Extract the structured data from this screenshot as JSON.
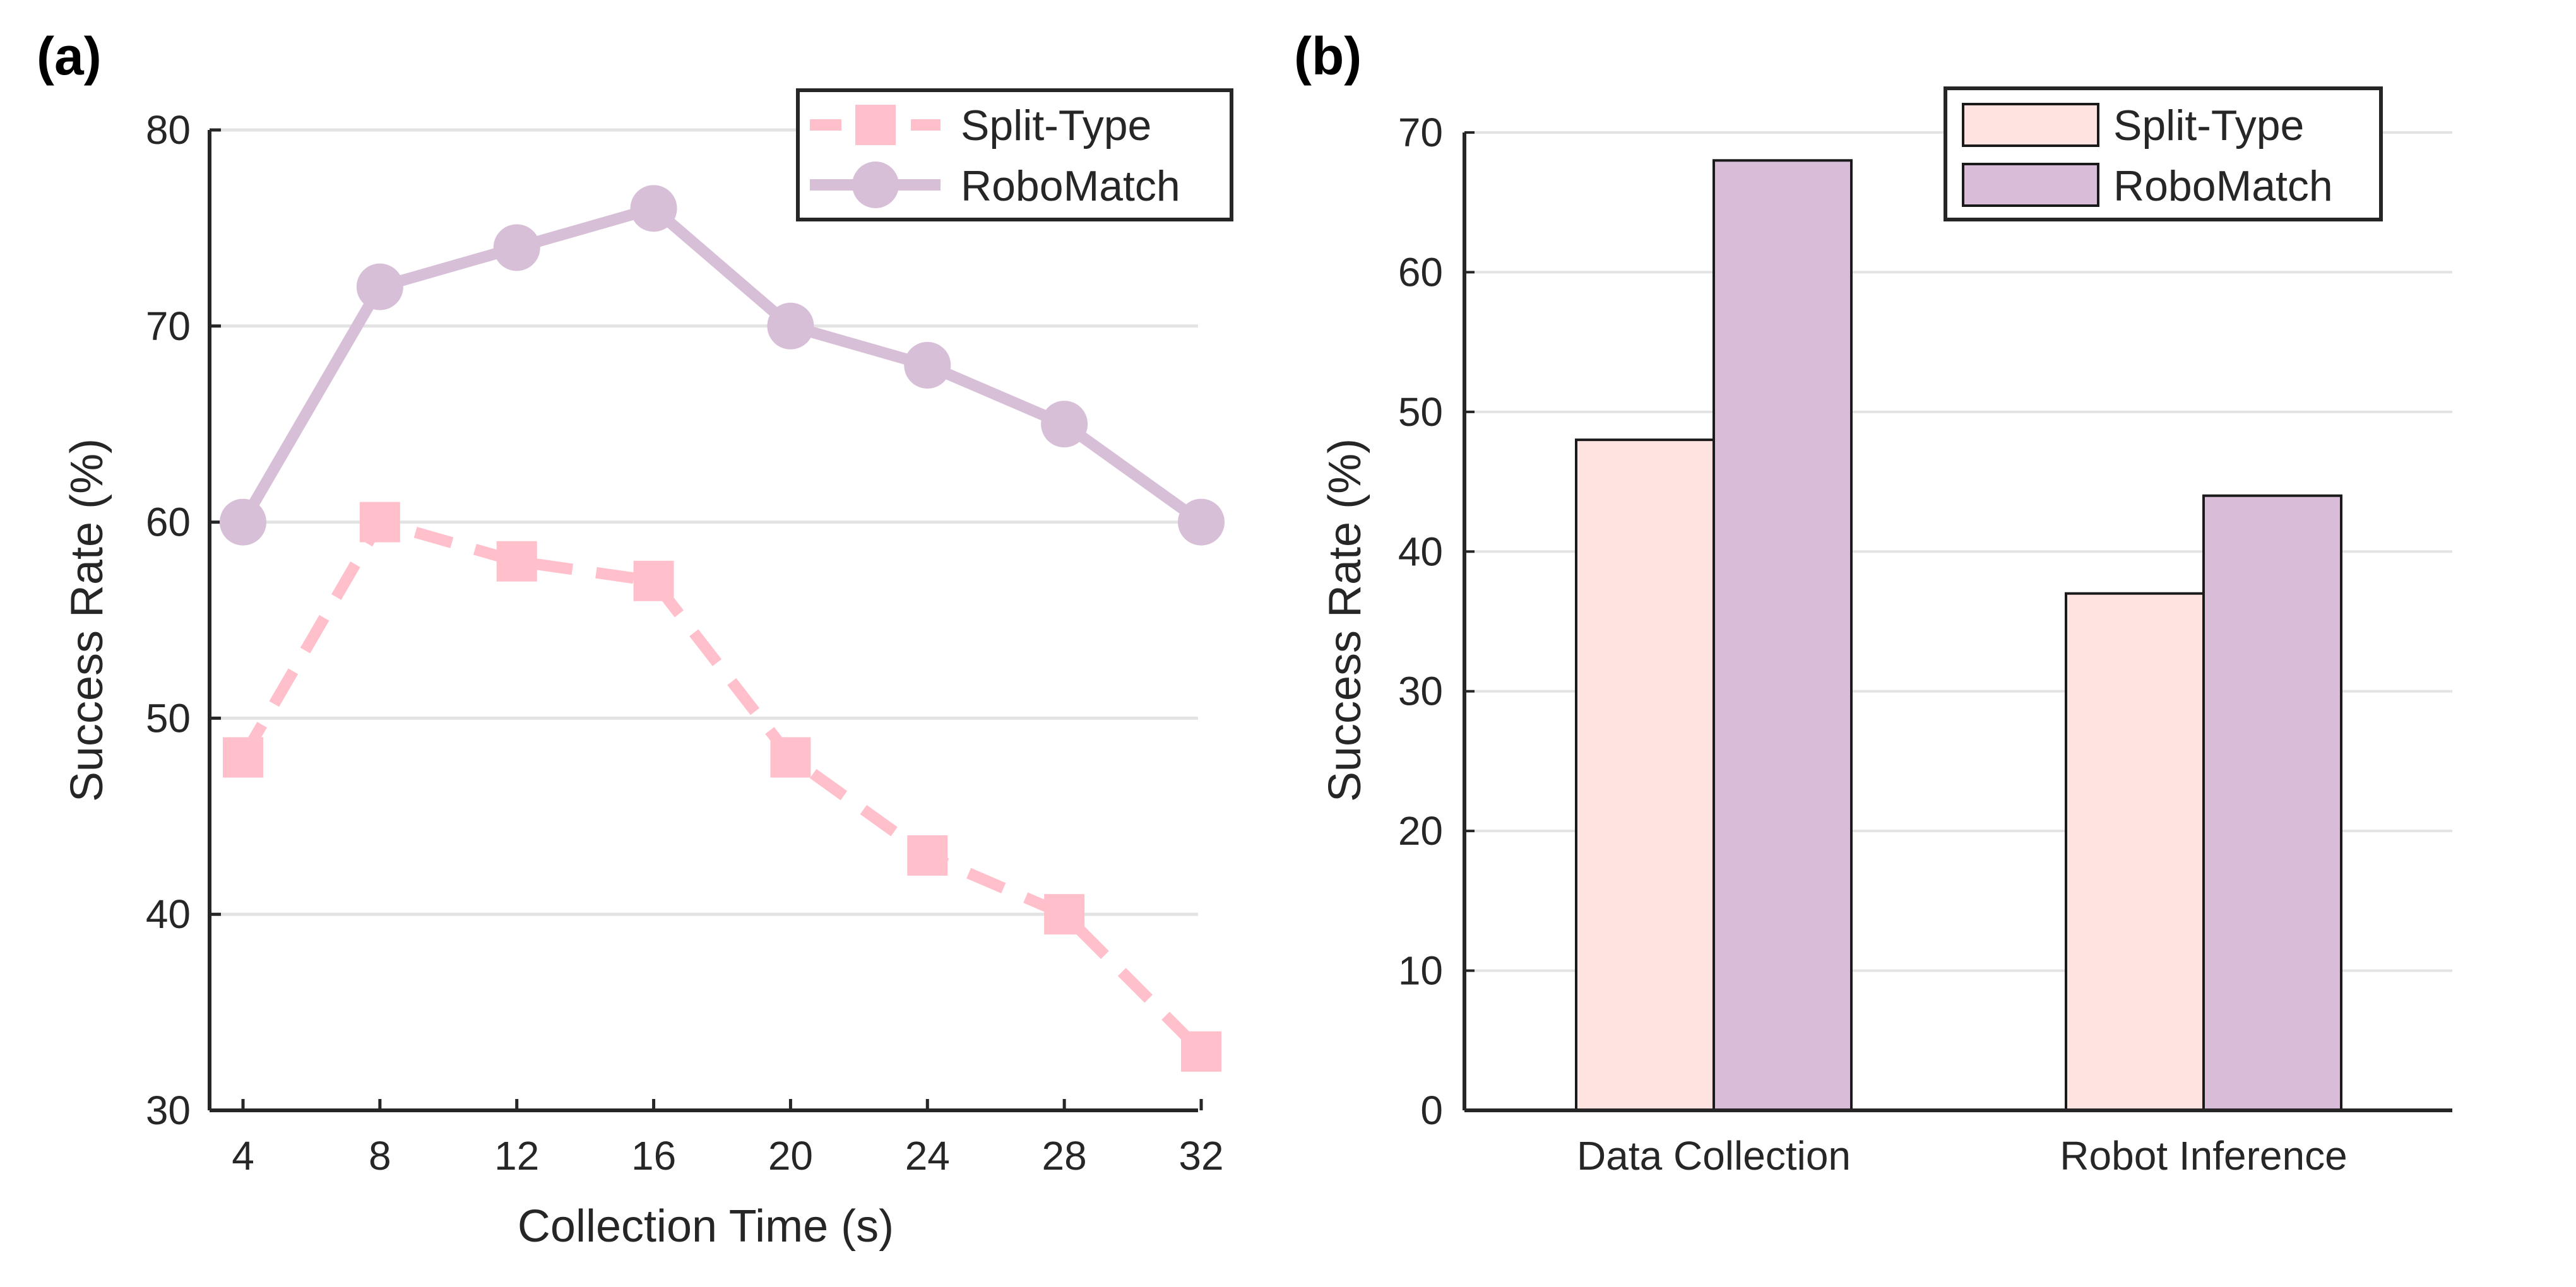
{
  "colors": {
    "split_line": "#ffc0cb",
    "robo_line": "#d8bfd8",
    "split_bar": "#ffe3e1",
    "robo_bar": "#d8bcd8",
    "axis": "#262626",
    "grid": "#e3e3e3"
  },
  "chart_data": [
    {
      "panel": "(a)",
      "type": "line",
      "xlabel": "Collection Time (s)",
      "ylabel": "Success Rate (%)",
      "x": [
        4,
        8,
        12,
        16,
        20,
        24,
        28,
        32
      ],
      "xticks": [
        4,
        8,
        12,
        16,
        20,
        24,
        28,
        32
      ],
      "yticks": [
        30,
        40,
        50,
        60,
        70,
        80
      ],
      "ylim": [
        30,
        80
      ],
      "grid": true,
      "legend_position": "top-right",
      "series": [
        {
          "name": "Split-Type",
          "marker": "square",
          "linestyle": "dashed",
          "values": [
            48,
            60,
            58,
            57,
            48,
            43,
            40,
            33
          ]
        },
        {
          "name": "RoboMatch",
          "marker": "circle",
          "linestyle": "solid",
          "values": [
            60,
            72,
            74,
            76,
            70,
            68,
            65,
            60
          ]
        }
      ]
    },
    {
      "panel": "(b)",
      "type": "bar",
      "xlabel": "",
      "ylabel": "Success Rate (%)",
      "categories": [
        "Data Collection",
        "Robot Inference"
      ],
      "yticks": [
        0,
        10,
        20,
        30,
        40,
        50,
        60,
        70
      ],
      "ylim": [
        0,
        70
      ],
      "grid": true,
      "legend_position": "top-right",
      "series": [
        {
          "name": "Split-Type",
          "values": [
            48,
            37
          ]
        },
        {
          "name": "RoboMatch",
          "values": [
            68,
            44
          ]
        }
      ]
    }
  ]
}
